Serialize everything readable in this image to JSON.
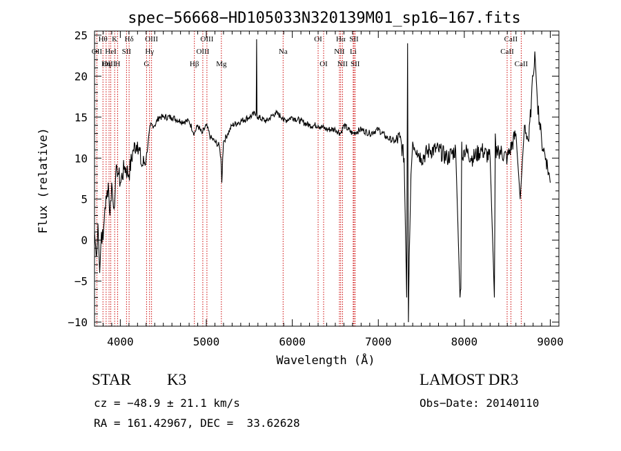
{
  "chart_data": {
    "type": "line",
    "title": "spec−56668−HD105033N320139M01_sp16−167.fits",
    "xlabel": "Wavelength (Å)",
    "ylabel": "Flux (relative)",
    "xlim": [
      3700,
      9100
    ],
    "ylim": [
      -10.5,
      25.5
    ],
    "xticks": [
      4000,
      5000,
      6000,
      7000,
      8000,
      9000
    ],
    "yticks": [
      -10,
      -5,
      0,
      5,
      10,
      15,
      20,
      25
    ],
    "series": [
      {
        "name": "flux",
        "x": [
          3700,
          3720,
          3740,
          3760,
          3780,
          3800,
          3820,
          3840,
          3860,
          3880,
          3900,
          3920,
          3940,
          3960,
          3980,
          4000,
          4050,
          4100,
          4150,
          4200,
          4250,
          4300,
          4350,
          4400,
          4450,
          4500,
          4600,
          4700,
          4800,
          4860,
          4900,
          4950,
          5000,
          5050,
          5100,
          5150,
          5170,
          5180,
          5190,
          5200,
          5250,
          5300,
          5400,
          5500,
          5580,
          5585,
          5590,
          5600,
          5700,
          5800,
          5890,
          5900,
          6000,
          6100,
          6200,
          6300,
          6400,
          6500,
          6560,
          6600,
          6700,
          6800,
          6900,
          7000,
          7100,
          7200,
          7250,
          7300,
          7330,
          7340,
          7350,
          7360,
          7380,
          7400,
          7450,
          7500,
          7600,
          7700,
          7800,
          7900,
          7950,
          7960,
          7970,
          7980,
          8000,
          8100,
          8200,
          8300,
          8350,
          8360,
          8370,
          8380,
          8400,
          8500,
          8600,
          8650,
          8700,
          8750,
          8780,
          8800,
          8820,
          8850,
          8900,
          8950,
          9000
        ],
        "y": [
          1,
          -2,
          2,
          -4,
          1,
          0,
          4,
          5,
          7,
          3,
          7,
          4,
          6,
          9,
          8,
          7,
          9,
          8,
          11,
          12,
          9,
          10,
          14,
          14,
          15,
          15,
          15,
          14.5,
          14.5,
          13,
          14,
          13,
          14,
          12.5,
          12,
          11.5,
          10,
          7,
          10,
          12,
          13,
          14,
          14.5,
          15,
          15.5,
          24.5,
          15,
          15,
          14.5,
          15.5,
          15,
          14.5,
          15,
          14.5,
          14,
          14,
          13.5,
          13.5,
          13,
          14,
          13,
          13.5,
          13,
          13.5,
          12.5,
          12,
          12.5,
          10,
          -7,
          24,
          -10,
          -2,
          8,
          12,
          11,
          10,
          11,
          11,
          10,
          11,
          -7,
          -6,
          12,
          10,
          11,
          10,
          11,
          10,
          -7,
          13,
          10,
          11,
          11,
          10,
          13,
          5,
          14,
          12,
          17,
          20,
          23,
          17,
          12,
          10,
          7
        ]
      }
    ],
    "lines": [
      {
        "label": "Hθ",
        "wl": 3798,
        "row": 1
      },
      {
        "label": "OII",
        "wl": 3727,
        "row": 2
      },
      {
        "label": "OIII",
        "wl": 3869,
        "row": 3
      },
      {
        "label": "K",
        "wl": 3934,
        "row": 1
      },
      {
        "label": "HeI",
        "wl": 3889,
        "row": 2
      },
      {
        "label": "Hη",
        "wl": 3835,
        "row": 3
      },
      {
        "label": "Hδ",
        "wl": 4102,
        "row": 1
      },
      {
        "label": "SII",
        "wl": 4072,
        "row": 2
      },
      {
        "label": "H",
        "wl": 3969,
        "row": 3
      },
      {
        "label": "OIII",
        "wl": 4363,
        "row": 1
      },
      {
        "label": "Hγ",
        "wl": 4340,
        "row": 2
      },
      {
        "label": "G",
        "wl": 4305,
        "row": 3
      },
      {
        "label": "OIII",
        "wl": 5007,
        "row": 1
      },
      {
        "label": "OIII",
        "wl": 4959,
        "row": 2
      },
      {
        "label": "Hβ",
        "wl": 4861,
        "row": 3
      },
      {
        "label": "Mg",
        "wl": 5175,
        "row": 3
      },
      {
        "label": "Na",
        "wl": 5893,
        "row": 2
      },
      {
        "label": "OI",
        "wl": 6300,
        "row": 1
      },
      {
        "label": "OI",
        "wl": 6364,
        "row": 3
      },
      {
        "label": "Hα",
        "wl": 6563,
        "row": 1
      },
      {
        "label": "NII",
        "wl": 6548,
        "row": 2
      },
      {
        "label": "NII",
        "wl": 6584,
        "row": 3
      },
      {
        "label": "SII",
        "wl": 6717,
        "row": 1
      },
      {
        "label": "Li",
        "wl": 6708,
        "row": 2
      },
      {
        "label": "SII",
        "wl": 6731,
        "row": 3
      },
      {
        "label": "CaII",
        "wl": 8542,
        "row": 1
      },
      {
        "label": "CaII",
        "wl": 8498,
        "row": 2
      },
      {
        "label": "CaII",
        "wl": 8662,
        "row": 3
      }
    ],
    "line_color": "#cc0000"
  },
  "info": {
    "object_class": "STAR",
    "subclass": "K3",
    "survey": "LAMOST DR3",
    "cz": "cz = −48.9 ± 21.1 km/s",
    "obs_date": "Obs−Date: 20140110",
    "coords": "RA = 161.42967, DEC =  33.62628"
  }
}
